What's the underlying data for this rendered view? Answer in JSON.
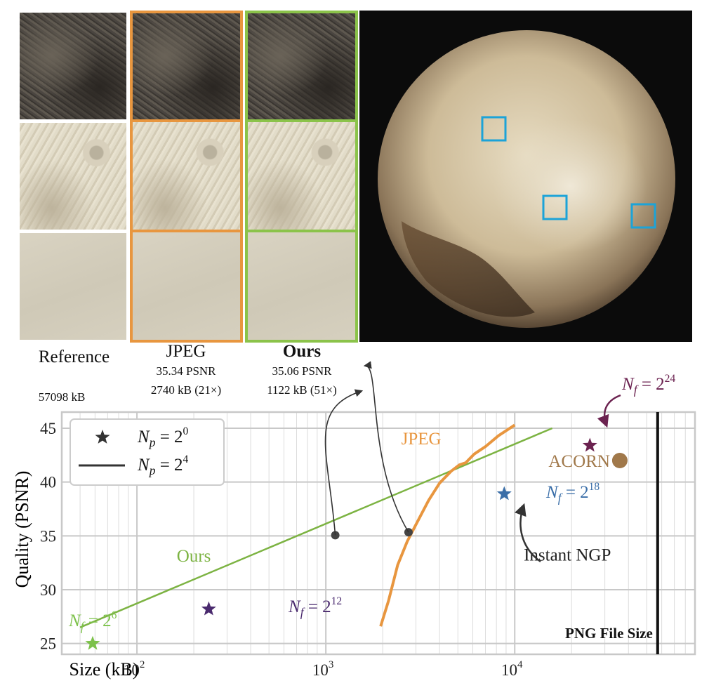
{
  "columns": [
    {
      "label": "Reference",
      "psnr": "",
      "size": "57098 kB"
    },
    {
      "label": "JPEG",
      "psnr": "35.34 PSNR",
      "size": "2740 kB (21×)"
    },
    {
      "label": "Ours",
      "psnr": "35.06 PSNR",
      "size": "1122 kB (51×)"
    }
  ],
  "colors": {
    "ours": "#7cb342",
    "jpeg": "#e8963f",
    "acorn": "#a0784a",
    "ngp_18": "#3a6ea8",
    "nf_24": "#6b2250",
    "nf_12": "#4a2a6e",
    "nf_6": "#7cc14a",
    "box": "#1ca3d8",
    "axes": "#c8c8c8",
    "grid": "#dcdcdc"
  },
  "chart_data": {
    "type": "line",
    "xlabel": "Size (kB)",
    "ylabel": "Quality (PSNR)",
    "xscale": "log",
    "xlim": [
      40,
      90000
    ],
    "ylim": [
      24,
      46.5
    ],
    "xticks": [
      {
        "value": 100,
        "base": "10",
        "exp": "2"
      },
      {
        "value": 1000,
        "base": "10",
        "exp": "3"
      },
      {
        "value": 10000,
        "base": "10",
        "exp": "4"
      }
    ],
    "yticks": [
      25,
      30,
      35,
      40,
      45
    ],
    "grid": true,
    "legend": {
      "position": "top-left",
      "items": [
        {
          "marker": "star",
          "text": "N",
          "sub": "p",
          "rest": " = 2",
          "sup": "0"
        },
        {
          "marker": "line",
          "text": "N",
          "sub": "p",
          "rest": " = 2",
          "sup": "4"
        }
      ]
    },
    "series": [
      {
        "name": "Ours",
        "type": "line",
        "color": "#7cb342",
        "x": [
          50,
          15800
        ],
        "y": [
          26.5,
          45.0
        ]
      },
      {
        "name": "JPEG",
        "type": "line",
        "color": "#e8963f",
        "x": [
          1950,
          2150,
          2400,
          2700,
          3050,
          3500,
          4000,
          4600,
          5100,
          5500,
          6100,
          7000,
          8200,
          10000
        ],
        "y": [
          26.6,
          29.0,
          32.3,
          34.5,
          36.3,
          38.3,
          39.9,
          41.0,
          41.6,
          41.8,
          42.6,
          43.3,
          44.3,
          45.3
        ]
      }
    ],
    "points": [
      {
        "label": "N",
        "sub": "f",
        "rest": " = 2",
        "sup": "6",
        "x": 34,
        "y": 25.0,
        "marker": "star",
        "color": "#7cc14a"
      },
      {
        "label": "N",
        "sub": "f",
        "rest": " = 2",
        "sup": "12",
        "x": 240,
        "y": 28.2,
        "marker": "star",
        "color": "#4a2a6e"
      },
      {
        "label": "N",
        "sub": "f",
        "rest": " = 2",
        "sup": "18",
        "x": 8800,
        "y": 38.9,
        "marker": "star",
        "color": "#3a6ea8"
      },
      {
        "label": "N",
        "sub": "f",
        "rest": " = 2",
        "sup": "24",
        "x": 25000,
        "y": 43.4,
        "marker": "star",
        "color": "#6b2250"
      },
      {
        "label": "ACORN",
        "x": 36000,
        "y": 42.0,
        "marker": "circle",
        "color": "#a0784a"
      }
    ],
    "highlight_points": [
      {
        "x": 1122,
        "y": 35.06
      },
      {
        "x": 2740,
        "y": 35.34
      }
    ],
    "reference_line": {
      "x": 57098,
      "label": "PNG File Size"
    },
    "annotations": [
      {
        "text": "Ours",
        "x": 200,
        "y": 32.6,
        "color": "#7cb342"
      },
      {
        "text": "JPEG",
        "x": 3200,
        "y": 43.5,
        "color": "#e8963f"
      },
      {
        "text": "Instant NGP",
        "x": 19000,
        "y": 32.7,
        "color": "#222222"
      }
    ]
  }
}
